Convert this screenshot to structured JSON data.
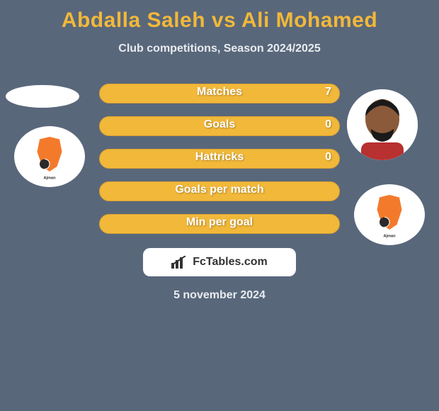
{
  "colors": {
    "background": "#59677b",
    "accent": "#f1b83a",
    "accent_border": "#d8a032",
    "text_light": "#e8ecef",
    "text_white": "#ffffff",
    "source_bg": "#ffffff",
    "source_text": "#333333",
    "club_orange": "#f47a2b",
    "club_dark": "#2a2a2a"
  },
  "title": {
    "player1": "Abdalla Saleh",
    "vs": "vs",
    "player2": "Ali Mohamed"
  },
  "subtitle": "Club competitions, Season 2024/2025",
  "stats": [
    {
      "label": "Matches",
      "value": "7",
      "fill_pct": 100
    },
    {
      "label": "Goals",
      "value": "0",
      "fill_pct": 100
    },
    {
      "label": "Hattricks",
      "value": "0",
      "fill_pct": 100
    },
    {
      "label": "Goals per match",
      "value": "",
      "fill_pct": 100
    },
    {
      "label": "Min per goal",
      "value": "",
      "fill_pct": 100
    }
  ],
  "source": {
    "text": "FcTables.com"
  },
  "date": "5 november 2024",
  "typography": {
    "title_fontsize": 30,
    "subtitle_fontsize": 16,
    "stat_label_fontsize": 16,
    "source_fontsize": 16,
    "date_fontsize": 16
  }
}
